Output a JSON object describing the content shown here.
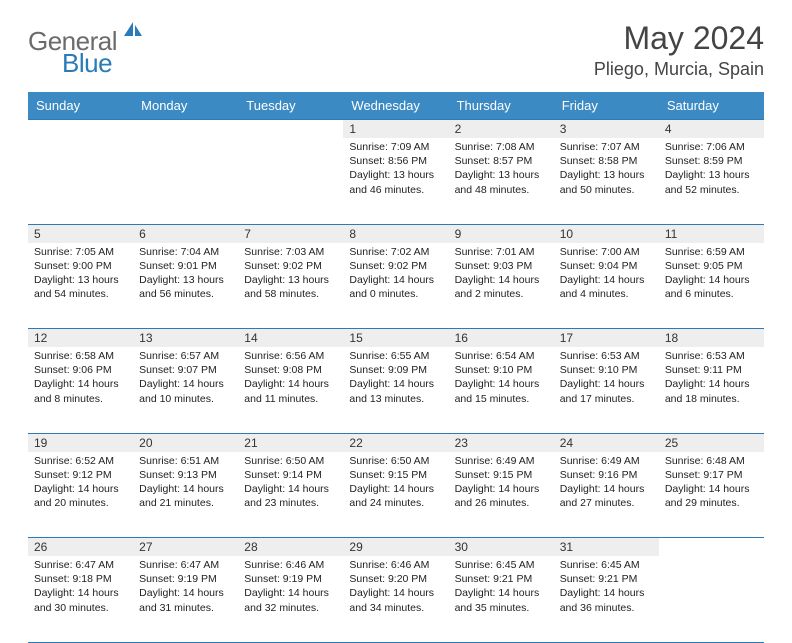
{
  "logo": {
    "general": "General",
    "blue": "Blue",
    "icon_color": "#2b7bb9"
  },
  "title": {
    "month_year": "May 2024",
    "location": "Pliego, Murcia, Spain"
  },
  "colors": {
    "header_bg": "#3b8ac4",
    "header_fg": "#ffffff",
    "rule": "#2b7bb9",
    "daynum_bg": "#eeeeee",
    "text": "#333333"
  },
  "weekdays": [
    "Sunday",
    "Monday",
    "Tuesday",
    "Wednesday",
    "Thursday",
    "Friday",
    "Saturday"
  ],
  "weeks": [
    [
      null,
      null,
      null,
      {
        "n": "1",
        "sr": "7:09 AM",
        "ss": "8:56 PM",
        "dl": "13 hours and 46 minutes."
      },
      {
        "n": "2",
        "sr": "7:08 AM",
        "ss": "8:57 PM",
        "dl": "13 hours and 48 minutes."
      },
      {
        "n": "3",
        "sr": "7:07 AM",
        "ss": "8:58 PM",
        "dl": "13 hours and 50 minutes."
      },
      {
        "n": "4",
        "sr": "7:06 AM",
        "ss": "8:59 PM",
        "dl": "13 hours and 52 minutes."
      }
    ],
    [
      {
        "n": "5",
        "sr": "7:05 AM",
        "ss": "9:00 PM",
        "dl": "13 hours and 54 minutes."
      },
      {
        "n": "6",
        "sr": "7:04 AM",
        "ss": "9:01 PM",
        "dl": "13 hours and 56 minutes."
      },
      {
        "n": "7",
        "sr": "7:03 AM",
        "ss": "9:02 PM",
        "dl": "13 hours and 58 minutes."
      },
      {
        "n": "8",
        "sr": "7:02 AM",
        "ss": "9:02 PM",
        "dl": "14 hours and 0 minutes."
      },
      {
        "n": "9",
        "sr": "7:01 AM",
        "ss": "9:03 PM",
        "dl": "14 hours and 2 minutes."
      },
      {
        "n": "10",
        "sr": "7:00 AM",
        "ss": "9:04 PM",
        "dl": "14 hours and 4 minutes."
      },
      {
        "n": "11",
        "sr": "6:59 AM",
        "ss": "9:05 PM",
        "dl": "14 hours and 6 minutes."
      }
    ],
    [
      {
        "n": "12",
        "sr": "6:58 AM",
        "ss": "9:06 PM",
        "dl": "14 hours and 8 minutes."
      },
      {
        "n": "13",
        "sr": "6:57 AM",
        "ss": "9:07 PM",
        "dl": "14 hours and 10 minutes."
      },
      {
        "n": "14",
        "sr": "6:56 AM",
        "ss": "9:08 PM",
        "dl": "14 hours and 11 minutes."
      },
      {
        "n": "15",
        "sr": "6:55 AM",
        "ss": "9:09 PM",
        "dl": "14 hours and 13 minutes."
      },
      {
        "n": "16",
        "sr": "6:54 AM",
        "ss": "9:10 PM",
        "dl": "14 hours and 15 minutes."
      },
      {
        "n": "17",
        "sr": "6:53 AM",
        "ss": "9:10 PM",
        "dl": "14 hours and 17 minutes."
      },
      {
        "n": "18",
        "sr": "6:53 AM",
        "ss": "9:11 PM",
        "dl": "14 hours and 18 minutes."
      }
    ],
    [
      {
        "n": "19",
        "sr": "6:52 AM",
        "ss": "9:12 PM",
        "dl": "14 hours and 20 minutes."
      },
      {
        "n": "20",
        "sr": "6:51 AM",
        "ss": "9:13 PM",
        "dl": "14 hours and 21 minutes."
      },
      {
        "n": "21",
        "sr": "6:50 AM",
        "ss": "9:14 PM",
        "dl": "14 hours and 23 minutes."
      },
      {
        "n": "22",
        "sr": "6:50 AM",
        "ss": "9:15 PM",
        "dl": "14 hours and 24 minutes."
      },
      {
        "n": "23",
        "sr": "6:49 AM",
        "ss": "9:15 PM",
        "dl": "14 hours and 26 minutes."
      },
      {
        "n": "24",
        "sr": "6:49 AM",
        "ss": "9:16 PM",
        "dl": "14 hours and 27 minutes."
      },
      {
        "n": "25",
        "sr": "6:48 AM",
        "ss": "9:17 PM",
        "dl": "14 hours and 29 minutes."
      }
    ],
    [
      {
        "n": "26",
        "sr": "6:47 AM",
        "ss": "9:18 PM",
        "dl": "14 hours and 30 minutes."
      },
      {
        "n": "27",
        "sr": "6:47 AM",
        "ss": "9:19 PM",
        "dl": "14 hours and 31 minutes."
      },
      {
        "n": "28",
        "sr": "6:46 AM",
        "ss": "9:19 PM",
        "dl": "14 hours and 32 minutes."
      },
      {
        "n": "29",
        "sr": "6:46 AM",
        "ss": "9:20 PM",
        "dl": "14 hours and 34 minutes."
      },
      {
        "n": "30",
        "sr": "6:45 AM",
        "ss": "9:21 PM",
        "dl": "14 hours and 35 minutes."
      },
      {
        "n": "31",
        "sr": "6:45 AM",
        "ss": "9:21 PM",
        "dl": "14 hours and 36 minutes."
      },
      null
    ]
  ],
  "labels": {
    "sunrise": "Sunrise:",
    "sunset": "Sunset:",
    "daylight": "Daylight:"
  }
}
